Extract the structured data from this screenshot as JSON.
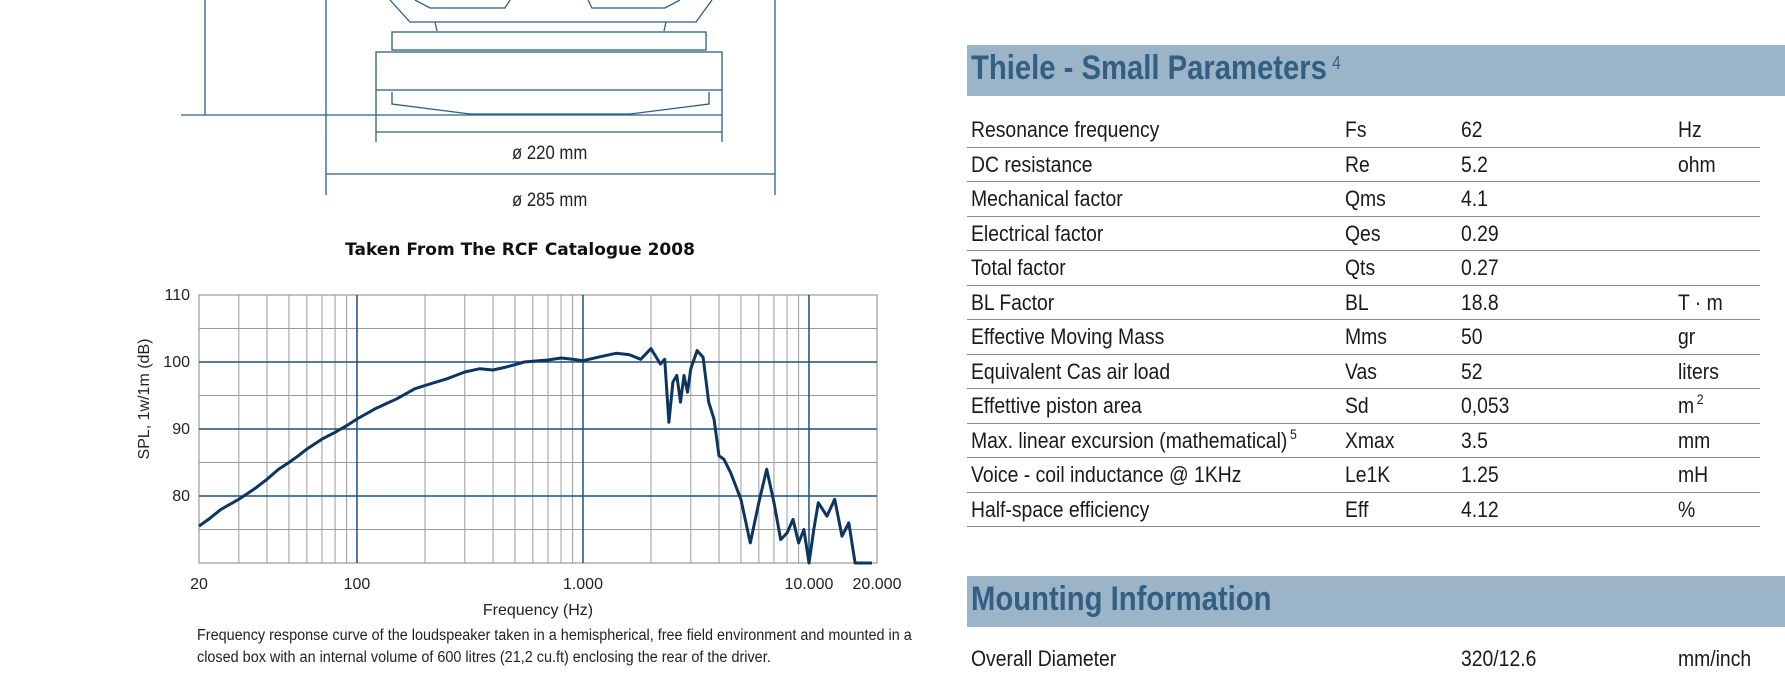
{
  "drawing": {
    "inner_diameter": "ø 220 mm",
    "outer_diameter": "ø 285 mm"
  },
  "catalogue_caption": "Taken From The RCF Catalogue 2008",
  "chart_data": {
    "type": "line",
    "title": "",
    "xlabel": "Frequency (Hz)",
    "ylabel": "SPL, 1w/1m (dB)",
    "x_scale": "log",
    "xlim": [
      20,
      20000
    ],
    "ylim": [
      70,
      110
    ],
    "x_ticks": [
      {
        "value": 20,
        "label": "20"
      },
      {
        "value": 100,
        "label": "100"
      },
      {
        "value": 1000,
        "label": "1.000"
      },
      {
        "value": 10000,
        "label": "10.000"
      },
      {
        "value": 20000,
        "label": "20.000"
      }
    ],
    "y_ticks": [
      {
        "value": 80,
        "label": "80"
      },
      {
        "value": 90,
        "label": "90"
      },
      {
        "value": 100,
        "label": "100"
      },
      {
        "value": 110,
        "label": "110"
      }
    ],
    "grid": true,
    "line_color": "#0d3560",
    "grid_major_color": "#1f4f7a",
    "grid_minor_color": "#9a9a9a",
    "series": [
      {
        "x": [
          20,
          22,
          25,
          30,
          35,
          40,
          45,
          50,
          55,
          60,
          70,
          80,
          90,
          100,
          120,
          150,
          180,
          200,
          250,
          300,
          350,
          400,
          450,
          500,
          550,
          600,
          700,
          800,
          900,
          1000,
          1200,
          1400,
          1600,
          1800,
          2000,
          2200,
          2300,
          2400,
          2500,
          2600,
          2700,
          2800,
          2900,
          3000,
          3200,
          3400,
          3600,
          3800,
          4000,
          4200,
          4500,
          5000,
          5500,
          6000,
          6500,
          7000,
          7500,
          8000,
          8500,
          9000,
          9500,
          10000,
          10500,
          11000,
          12000,
          13000,
          14000,
          15000,
          16000,
          17000,
          18000,
          19000
        ],
        "y": [
          75.5,
          76.5,
          78,
          79.5,
          81,
          82.5,
          84,
          85,
          86,
          87,
          88.5,
          89.5,
          90.5,
          91.5,
          93,
          94.5,
          96,
          96.5,
          97.5,
          98.5,
          99,
          98.8,
          99.2,
          99.6,
          100,
          100.1,
          100.3,
          100.6,
          100.4,
          100.2,
          100.8,
          101.3,
          101.1,
          100.4,
          102,
          99.7,
          100.4,
          91,
          97,
          98,
          94,
          98,
          95.5,
          99,
          101.7,
          100.7,
          94,
          91.5,
          86,
          85.5,
          83.5,
          79.5,
          73,
          79,
          84,
          79,
          73.5,
          74.5,
          76.5,
          73,
          75,
          70,
          75,
          79,
          77,
          79.5,
          74,
          76,
          70,
          70,
          70,
          70
        ]
      }
    ]
  },
  "figure_caption": {
    "line1": "Frequency response curve of the loudspeaker taken in a hemispherical, free field environment and mounted in a",
    "line2": "closed box with an internal volume of 600 litres (21,2 cu.ft) enclosing the rear of the driver."
  },
  "thiele_small": {
    "title": "Thiele - Small Parameters",
    "title_note": "4",
    "rows": [
      {
        "name": "Resonance frequency",
        "symbol": "Fs",
        "value": "62",
        "unit": "Hz"
      },
      {
        "name": "DC resistance",
        "symbol": "Re",
        "value": "5.2",
        "unit": "ohm"
      },
      {
        "name": "Mechanical factor",
        "symbol": "Qms",
        "value": "4.1",
        "unit": ""
      },
      {
        "name": "Electrical factor",
        "symbol": "Qes",
        "value": "0.29",
        "unit": ""
      },
      {
        "name": "Total factor",
        "symbol": "Qts",
        "value": "0.27",
        "unit": ""
      },
      {
        "name": "BL Factor",
        "symbol": "BL",
        "value": "18.8",
        "unit": "T · m"
      },
      {
        "name": "Effective Moving Mass",
        "symbol": "Mms",
        "value": "50",
        "unit": "gr"
      },
      {
        "name": "Equivalent Cas air load",
        "symbol": "Vas",
        "value": "52",
        "unit": "liters"
      },
      {
        "name": "Effettive piston area",
        "symbol": "Sd",
        "value": "0,053",
        "unit": "m",
        "unit_sup": "2"
      },
      {
        "name": "Max. linear excursion (mathematical)",
        "name_sup": "5",
        "symbol": "Xmax",
        "value": "3.5",
        "unit": "mm"
      },
      {
        "name": "Voice - coil inductance @ 1KHz",
        "symbol": "Le1K",
        "value": "1.25",
        "unit": "mH"
      },
      {
        "name": "Half-space efficiency",
        "symbol": "Eff",
        "value": "4.12",
        "unit": "%"
      }
    ]
  },
  "mounting": {
    "title": "Mounting Information",
    "rows": [
      {
        "name": "Overall Diameter",
        "value": "320/12.6",
        "unit": "mm/inch"
      }
    ]
  }
}
